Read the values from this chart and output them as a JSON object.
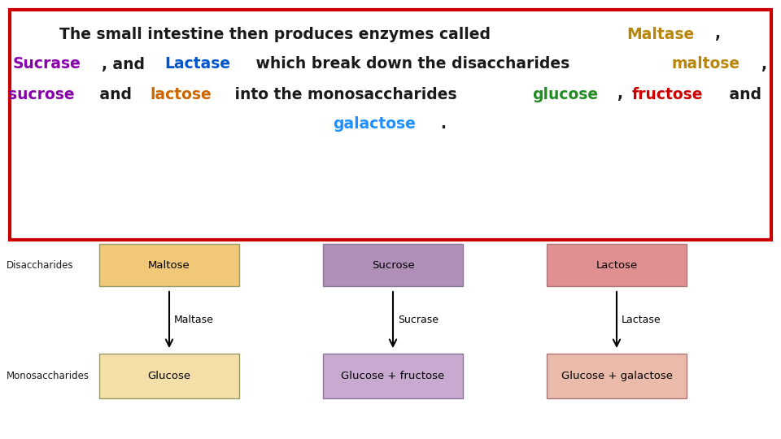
{
  "background_color": "#ffffff",
  "border_color": "#cc0000",
  "text_box": {
    "line1": [
      {
        "text": "The small intestine then produces enzymes called ",
        "color": "#1a1a1a"
      },
      {
        "text": "Maltase",
        "color": "#b8860b"
      },
      {
        "text": ",",
        "color": "#1a1a1a"
      }
    ],
    "line2": [
      {
        "text": "Sucrase",
        "color": "#8800aa"
      },
      {
        "text": ", and ",
        "color": "#1a1a1a"
      },
      {
        "text": "Lactase",
        "color": "#0055cc"
      },
      {
        "text": " which break down the disaccharides ",
        "color": "#1a1a1a"
      },
      {
        "text": "maltose",
        "color": "#b8860b"
      },
      {
        "text": ",",
        "color": "#1a1a1a"
      }
    ],
    "line3": [
      {
        "text": "sucrose",
        "color": "#8800aa"
      },
      {
        "text": " and ",
        "color": "#1a1a1a"
      },
      {
        "text": "lactose",
        "color": "#cc6600"
      },
      {
        "text": " into the monosaccharides ",
        "color": "#1a1a1a"
      },
      {
        "text": "glucose",
        "color": "#228b22"
      },
      {
        "text": ", ",
        "color": "#1a1a1a"
      },
      {
        "text": "fructose",
        "color": "#cc0000"
      },
      {
        "text": " and",
        "color": "#1a1a1a"
      }
    ],
    "line4": [
      {
        "text": "galactose",
        "color": "#1e90ff"
      },
      {
        "text": ".",
        "color": "#1a1a1a"
      }
    ]
  },
  "diagram": {
    "columns": [
      {
        "disaccharide_label": "Maltose",
        "disaccharide_color": "#f0c878",
        "disaccharide_border": "#999966",
        "enzyme_label": "Maltase",
        "monosaccharide_label": "Glucose",
        "monosaccharide_color": "#f5dfa8",
        "monosaccharide_border": "#999966"
      },
      {
        "disaccharide_label": "Sucrose",
        "disaccharide_color": "#b090b8",
        "disaccharide_border": "#887799",
        "enzyme_label": "Sucrase",
        "monosaccharide_label": "Glucose + fructose",
        "monosaccharide_color": "#c8aad0",
        "monosaccharide_border": "#887799"
      },
      {
        "disaccharide_label": "Lactose",
        "disaccharide_color": "#e09090",
        "disaccharide_border": "#aa7777",
        "enzyme_label": "Lactase",
        "monosaccharide_label": "Glucose + galactose",
        "monosaccharide_color": "#eabaaa",
        "monosaccharide_border": "#aa7777"
      }
    ],
    "row_label_disaccharides": "Disaccharides",
    "row_label_monosaccharides": "Monosaccharides",
    "row_label_color": "#1a1a1a",
    "row_label_fontsize": 8.5
  },
  "font_family": "Comic Sans MS",
  "text_fontsize": 13.5,
  "diagram_fontsize": 9.5
}
